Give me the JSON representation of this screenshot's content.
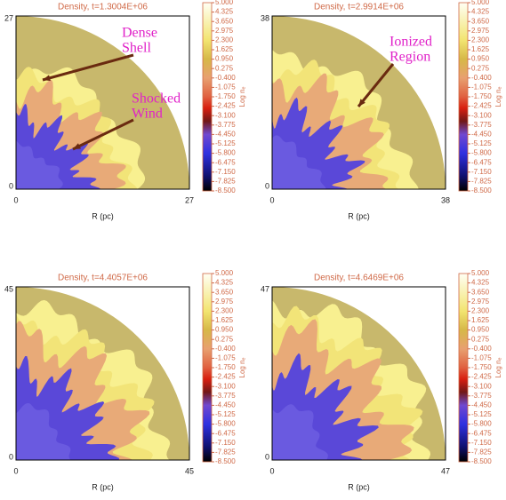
{
  "chart_data": [
    {
      "type": "heatmap",
      "title": "Density, t=1.3004E+06",
      "xlabel": "R (pc)",
      "xlim": [
        0,
        27
      ],
      "ylim": [
        0,
        27
      ],
      "xticks": [
        0,
        27
      ],
      "yticks": [
        0,
        27
      ],
      "colorbar": {
        "label": "Log nₑ",
        "clim": [
          -8.5,
          5
        ],
        "ticks": [
          {
            "value": 5,
            "label": "5.000"
          },
          4.325,
          {
            "value": 3.65,
            "label": "3.650"
          },
          2.975,
          {
            "value": 2.3,
            "label": "2.300"
          },
          1.625,
          {
            "value": 0.95,
            "label": "0.950"
          },
          0.275,
          {
            "value": -0.4,
            "label": "-0.400"
          },
          -1.075,
          {
            "value": -1.75,
            "label": "-1.750"
          },
          -2.425,
          {
            "value": -3.1,
            "label": "-3.100"
          },
          -3.775,
          {
            "value": -4.45,
            "label": "-4.450"
          },
          -5.125,
          {
            "value": -5.8,
            "label": "-5.800"
          },
          -6.475,
          {
            "value": -7.15,
            "label": "-7.150"
          },
          -7.825,
          {
            "value": -8.5,
            "label": "-8.500"
          }
        ]
      },
      "annotations": [
        {
          "lines": [
            "Dense",
            "Shell"
          ]
        },
        {
          "lines": [
            "Shocked",
            "Wind"
          ]
        }
      ]
    },
    {
      "type": "heatmap",
      "title": "Density, t=2.9914E+06",
      "xlabel": "R (pc)",
      "xlim": [
        0,
        38
      ],
      "ylim": [
        0,
        38
      ],
      "xticks": [
        0,
        38
      ],
      "yticks": [
        0,
        38
      ],
      "colorbar": {
        "label": "Log nₑ",
        "clim": [
          -8.5,
          5
        ],
        "ticks": [
          {
            "value": 5,
            "label": "5.000"
          },
          4.325,
          {
            "value": 3.65,
            "label": "3.650"
          },
          2.975,
          {
            "value": 2.3,
            "label": "2.300"
          },
          1.625,
          {
            "value": 0.95,
            "label": "0.950"
          },
          0.275,
          {
            "value": -0.4,
            "label": "-0.400"
          },
          -1.075,
          {
            "value": -1.75,
            "label": "-1.750"
          },
          -2.425,
          {
            "value": -3.1,
            "label": "-3.100"
          },
          -3.775,
          {
            "value": -4.45,
            "label": "-4.450"
          },
          -5.125,
          {
            "value": -5.8,
            "label": "-5.800"
          },
          -6.475,
          {
            "value": -7.15,
            "label": "-7.150"
          },
          -7.825,
          {
            "value": -8.5,
            "label": "-8.500"
          }
        ]
      },
      "annotations": [
        {
          "lines": [
            "Ionized",
            "Region"
          ]
        }
      ]
    },
    {
      "type": "heatmap",
      "title": "Density, t=4.4057E+06",
      "xlabel": "R (pc)",
      "xlim": [
        0,
        45
      ],
      "ylim": [
        0,
        45
      ],
      "xticks": [
        0,
        45
      ],
      "yticks": [
        0,
        45
      ],
      "colorbar": {
        "label": "Log nₑ",
        "clim": [
          -8.5,
          5
        ],
        "ticks": [
          {
            "value": 5,
            "label": "5.000"
          },
          4.325,
          {
            "value": 3.65,
            "label": "3.650"
          },
          2.975,
          {
            "value": 2.3,
            "label": "2.300"
          },
          1.625,
          {
            "value": 0.95,
            "label": "0.950"
          },
          0.275,
          {
            "value": -0.4,
            "label": "-0.400"
          },
          -1.075,
          {
            "value": -1.75,
            "label": "-1.750"
          },
          -2.425,
          {
            "value": -3.1,
            "label": "-3.100"
          },
          -3.775,
          {
            "value": -4.45,
            "label": "-4.450"
          },
          -5.125,
          {
            "value": -5.8,
            "label": "-5.800"
          },
          -6.475,
          {
            "value": -7.15,
            "label": "-7.150"
          },
          -7.825,
          {
            "value": -8.5,
            "label": "-8.500"
          }
        ]
      }
    },
    {
      "type": "heatmap",
      "title": "Density, t=4.6469E+06",
      "xlabel": "R (pc)",
      "xlim": [
        0,
        47
      ],
      "ylim": [
        0,
        47
      ],
      "xticks": [
        0,
        47
      ],
      "yticks": [
        0,
        47
      ],
      "colorbar": {
        "label": "Log nₑ",
        "clim": [
          -8.5,
          5
        ],
        "ticks": [
          {
            "value": 5,
            "label": "5.000"
          },
          4.325,
          {
            "value": 3.65,
            "label": "3.650"
          },
          2.975,
          {
            "value": 2.3,
            "label": "2.300"
          },
          1.625,
          {
            "value": 0.95,
            "label": "0.950"
          },
          0.275,
          {
            "value": -0.4,
            "label": "-0.400"
          },
          -1.075,
          {
            "value": -1.75,
            "label": "-1.750"
          },
          -2.425,
          {
            "value": -3.1,
            "label": "-3.100"
          },
          -3.775,
          {
            "value": -4.45,
            "label": "-4.450"
          },
          -5.125,
          {
            "value": -5.8,
            "label": "-5.800"
          },
          -6.475,
          {
            "value": -7.15,
            "label": "-7.150"
          },
          -7.825,
          {
            "value": -8.5,
            "label": "-8.500"
          }
        ]
      }
    }
  ]
}
